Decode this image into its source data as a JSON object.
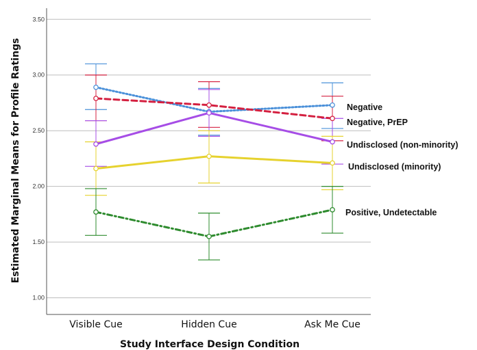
{
  "chart_data": {
    "type": "line",
    "xlabel": "Study Interface Design Condition",
    "ylabel": "Estimated Marginal Means for Profile Ratings",
    "categories": [
      "Visible Cue",
      "Hidden Cue",
      "Ask Me Cue"
    ],
    "ylim": [
      0.85,
      3.6
    ],
    "yticks": [
      "1.00",
      "1.50",
      "2.00",
      "2.50",
      "3.00",
      "3.50"
    ],
    "grid": true,
    "legend": "direct labels at right end of lines",
    "series": [
      {
        "name": "Negative",
        "color": "#4a90d9",
        "style": "dotted",
        "values": [
          2.89,
          2.67,
          2.73
        ],
        "ci_low": [
          2.69,
          2.46,
          2.52
        ],
        "ci_high": [
          3.1,
          2.88,
          2.93
        ]
      },
      {
        "name": "Negative, PrEP",
        "color": "#d42040",
        "style": "dashed",
        "values": [
          2.79,
          2.73,
          2.61
        ],
        "ci_low": [
          2.59,
          2.53,
          2.41
        ],
        "ci_high": [
          3.0,
          2.94,
          2.81
        ]
      },
      {
        "name": "Undisclosed (non-minority)",
        "color": "#a64de6",
        "style": "solid",
        "values": [
          2.38,
          2.66,
          2.4
        ],
        "ci_low": [
          2.18,
          2.45,
          2.2
        ],
        "ci_high": [
          2.59,
          2.87,
          2.61
        ]
      },
      {
        "name": "Undisclosed (minority)",
        "color": "#e6d22e",
        "style": "solid",
        "values": [
          2.16,
          2.27,
          2.21
        ],
        "ci_low": [
          1.92,
          2.03,
          1.97
        ],
        "ci_high": [
          2.4,
          2.5,
          2.45
        ]
      },
      {
        "name": "Positive, Undetectable",
        "color": "#2e8b2e",
        "style": "dashdot",
        "values": [
          1.77,
          1.55,
          1.79
        ],
        "ci_low": [
          1.56,
          1.34,
          1.58
        ],
        "ci_high": [
          1.98,
          1.76,
          2.0
        ]
      }
    ]
  }
}
